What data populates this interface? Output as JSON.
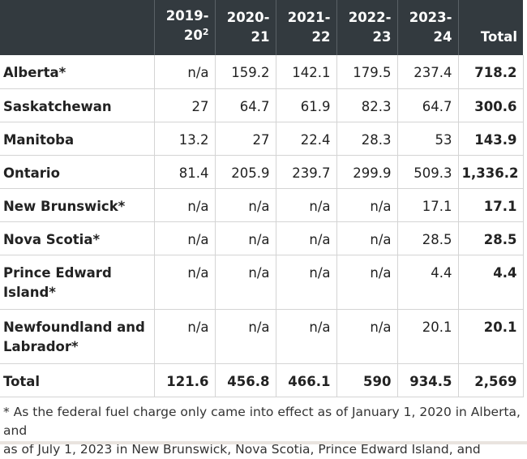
{
  "table": {
    "headers": [
      {
        "line1": "",
        "line2": "",
        "sup": ""
      },
      {
        "line1": "2019-",
        "line2": "20",
        "sup": "2"
      },
      {
        "line1": "2020-",
        "line2": "21",
        "sup": ""
      },
      {
        "line1": "2021-",
        "line2": "22",
        "sup": ""
      },
      {
        "line1": "2022-",
        "line2": "23",
        "sup": ""
      },
      {
        "line1": "2023-",
        "line2": "24",
        "sup": ""
      },
      {
        "line1": "",
        "line2": "Total",
        "sup": ""
      }
    ],
    "rows": [
      {
        "name1": "Alberta*",
        "name2": "",
        "values": [
          "n/a",
          "159.2",
          "142.1",
          "179.5",
          "237.4"
        ],
        "total": "718.2"
      },
      {
        "name1": "Saskatchewan",
        "name2": "",
        "values": [
          "27",
          "64.7",
          "61.9",
          "82.3",
          "64.7"
        ],
        "total": "300.6"
      },
      {
        "name1": "Manitoba",
        "name2": "",
        "values": [
          "13.2",
          "27",
          "22.4",
          "28.3",
          "53"
        ],
        "total": "143.9"
      },
      {
        "name1": "Ontario",
        "name2": "",
        "values": [
          "81.4",
          "205.9",
          "239.7",
          "299.9",
          "509.3"
        ],
        "total": "1,336.2"
      },
      {
        "name1": "New Brunswick*",
        "name2": "",
        "values": [
          "n/a",
          "n/a",
          "n/a",
          "n/a",
          "17.1"
        ],
        "total": "17.1"
      },
      {
        "name1": "Nova Scotia*",
        "name2": "",
        "values": [
          "n/a",
          "n/a",
          "n/a",
          "n/a",
          "28.5"
        ],
        "total": "28.5"
      },
      {
        "name1": "Prince Edward",
        "name2": "Island*",
        "values": [
          "n/a",
          "n/a",
          "n/a",
          "n/a",
          "4.4"
        ],
        "total": "4.4"
      },
      {
        "name1": "Newfoundland and",
        "name2": "Labrador*",
        "values": [
          "n/a",
          "n/a",
          "n/a",
          "n/a",
          "20.1"
        ],
        "total": "20.1"
      },
      {
        "name1": "Total",
        "name2": "",
        "values": [
          "121.6",
          "456.8",
          "466.1",
          "590",
          "934.5"
        ],
        "total": "2,569"
      }
    ]
  },
  "footnote": {
    "line1": "* As the federal fuel charge only came into effect as of January 1, 2020 in Alberta, and",
    "line2": "as of July 1, 2023 in New Brunswick, Nova Scotia, Prince Edward Island, and"
  }
}
